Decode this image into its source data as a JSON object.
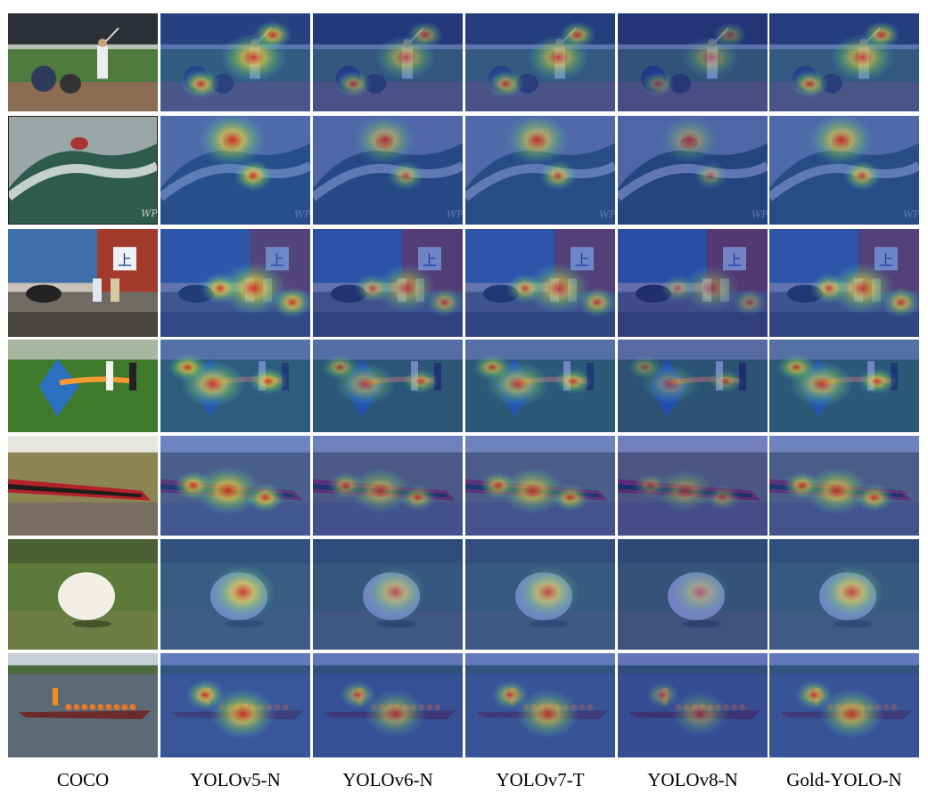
{
  "columns": [
    "COCO",
    "YOLOv5-N",
    "YOLOv6-N",
    "YOLOv7-T",
    "YOLOv8-N",
    "Gold-YOLO-N"
  ],
  "rows": [
    "baseball",
    "surfer",
    "street",
    "kite",
    "train",
    "sheep",
    "boat"
  ],
  "watermark": "WP",
  "sign_glyph": "上",
  "colors": {
    "jet_low": "#1a1f9a",
    "jet_mid": "#3fb7d6",
    "jet_green": "#7fd35a",
    "jet_yellow": "#f4e23a",
    "jet_high": "#e2261b"
  }
}
